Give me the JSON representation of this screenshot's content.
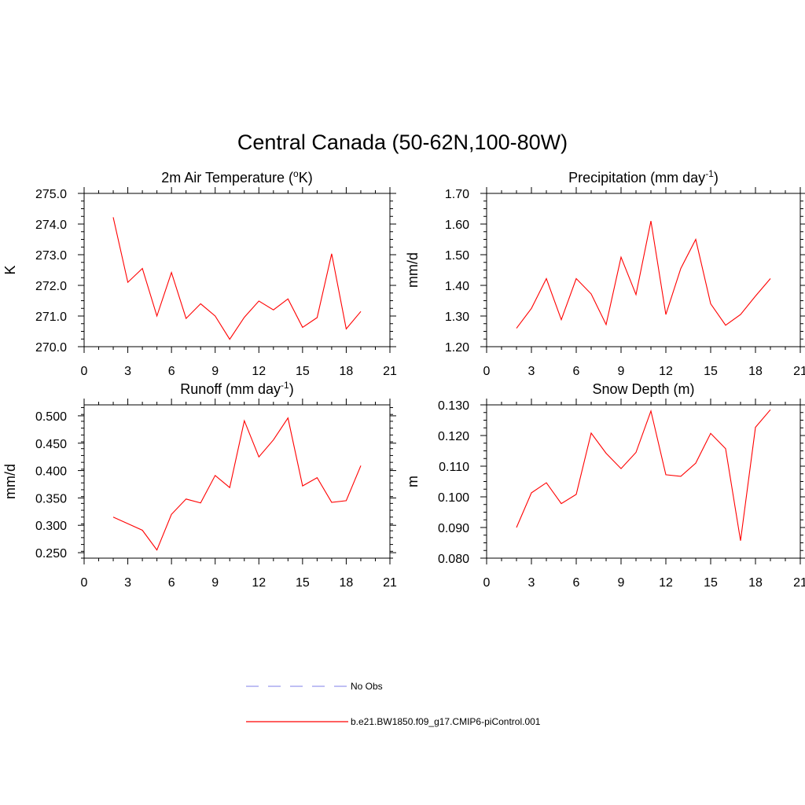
{
  "title": "Central Canada (50-62N,100-80W)",
  "colors": {
    "model": "#ff0000",
    "obs": "#9999ee",
    "axis": "#000000"
  },
  "legend": {
    "obs_label": "No Obs",
    "model_label": "b.e21.BW1850.f09_g17.CMIP6-piControl.001"
  },
  "chart_data": [
    {
      "type": "line",
      "title": "2m Air Temperature (",
      "title_sup": "o",
      "title_after": "K)",
      "ylabel": "K",
      "xlim": [
        0,
        21
      ],
      "ylim": [
        270.0,
        275.0
      ],
      "xticks": [
        0,
        3,
        6,
        9,
        12,
        15,
        18,
        21
      ],
      "yticks": [
        270.0,
        271.0,
        272.0,
        273.0,
        274.0,
        275.0
      ],
      "ytick_labels": [
        "270.0",
        "271.0",
        "272.0",
        "273.0",
        "274.0",
        "275.0"
      ],
      "yminor": 0.25,
      "series": [
        {
          "name": "b.e21.BW1850.f09_g17.CMIP6-piControl.001",
          "x": [
            2,
            3,
            4,
            5,
            6,
            7,
            8,
            9,
            10,
            11,
            12,
            13,
            14,
            15,
            16,
            17,
            18,
            19
          ],
          "values": [
            274.22,
            272.1,
            272.55,
            271.0,
            272.42,
            270.92,
            271.4,
            271.0,
            270.24,
            270.96,
            271.49,
            271.2,
            271.56,
            270.63,
            270.95,
            273.03,
            270.58,
            271.15
          ]
        }
      ]
    },
    {
      "type": "line",
      "title": "Precipitation (mm day",
      "title_sup": "-1",
      "title_after": ")",
      "ylabel": "mm/d",
      "xlim": [
        0,
        21
      ],
      "ylim": [
        1.2,
        1.7
      ],
      "xticks": [
        0,
        3,
        6,
        9,
        12,
        15,
        18,
        21
      ],
      "yticks": [
        1.2,
        1.3,
        1.4,
        1.5,
        1.6,
        1.7
      ],
      "ytick_labels": [
        "1.20",
        "1.30",
        "1.40",
        "1.50",
        "1.60",
        "1.70"
      ],
      "yminor": 0.025,
      "series": [
        {
          "name": "b.e21.BW1850.f09_g17.CMIP6-piControl.001",
          "x": [
            2,
            3,
            4,
            5,
            6,
            7,
            8,
            9,
            10,
            11,
            12,
            13,
            14,
            15,
            16,
            17,
            18,
            19
          ],
          "values": [
            1.26,
            1.325,
            1.422,
            1.288,
            1.422,
            1.372,
            1.272,
            1.492,
            1.37,
            1.61,
            1.305,
            1.455,
            1.55,
            1.34,
            1.27,
            1.305,
            1.365,
            1.422
          ]
        }
      ]
    },
    {
      "type": "line",
      "title": "Runoff (mm day",
      "title_sup": "-1",
      "title_after": ")",
      "ylabel": "mm/d",
      "xlim": [
        0,
        21
      ],
      "ylim": [
        0.24,
        0.52
      ],
      "xticks": [
        0,
        3,
        6,
        9,
        12,
        15,
        18,
        21
      ],
      "yticks": [
        0.25,
        0.3,
        0.35,
        0.4,
        0.45,
        0.5
      ],
      "ytick_labels": [
        "0.250",
        "0.300",
        "0.350",
        "0.400",
        "0.450",
        "0.500"
      ],
      "yminor": 0.0125,
      "series": [
        {
          "name": "b.e21.BW1850.f09_g17.CMIP6-piControl.001",
          "x": [
            2,
            3,
            4,
            5,
            6,
            7,
            8,
            9,
            10,
            11,
            12,
            13,
            14,
            15,
            16,
            17,
            18,
            19
          ],
          "values": [
            0.315,
            0.303,
            0.291,
            0.255,
            0.32,
            0.348,
            0.341,
            0.391,
            0.369,
            0.491,
            0.425,
            0.456,
            0.496,
            0.372,
            0.387,
            0.342,
            0.345,
            0.409
          ]
        }
      ]
    },
    {
      "type": "line",
      "title": "Snow Depth (m)",
      "title_sup": "",
      "title_after": "",
      "ylabel": "m",
      "xlim": [
        0,
        21
      ],
      "ylim": [
        0.08,
        0.13
      ],
      "xticks": [
        0,
        3,
        6,
        9,
        12,
        15,
        18,
        21
      ],
      "yticks": [
        0.08,
        0.09,
        0.1,
        0.11,
        0.12,
        0.13
      ],
      "ytick_labels": [
        "0.080",
        "0.090",
        "0.100",
        "0.110",
        "0.120",
        "0.130"
      ],
      "yminor": 0.0025,
      "series": [
        {
          "name": "b.e21.BW1850.f09_g17.CMIP6-piControl.001",
          "x": [
            2,
            3,
            4,
            5,
            6,
            7,
            8,
            9,
            10,
            11,
            12,
            13,
            14,
            15,
            16,
            17,
            18,
            19
          ],
          "values": [
            0.09,
            0.1013,
            0.1046,
            0.0978,
            0.1008,
            0.1208,
            0.1142,
            0.1092,
            0.1145,
            0.128,
            0.1072,
            0.1067,
            0.111,
            0.1207,
            0.1157,
            0.0857,
            0.1227,
            0.1284
          ]
        }
      ]
    }
  ]
}
